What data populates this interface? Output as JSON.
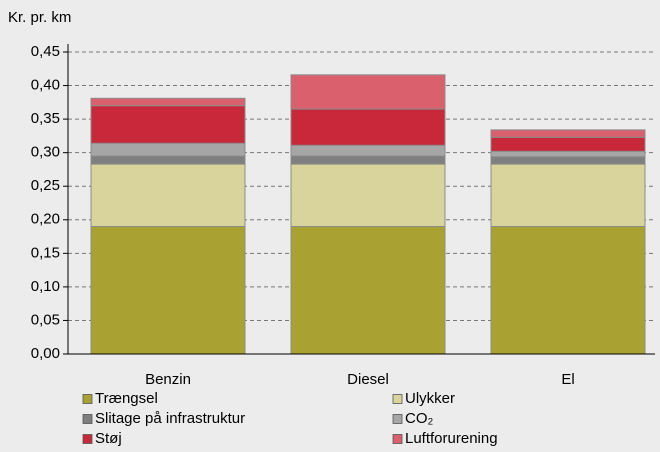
{
  "chart_data": {
    "type": "stacked_bar",
    "y_label": "Kr. pr. km",
    "categories": [
      "Benzin",
      "Diesel",
      "El"
    ],
    "series": [
      {
        "name": "Trængsel",
        "color": "#a9a233",
        "values": [
          0.19,
          0.19,
          0.19
        ]
      },
      {
        "name": "Ulykker",
        "color": "#d8d49b",
        "values": [
          0.093,
          0.093,
          0.093
        ]
      },
      {
        "name": "Slitage på infrastruktur",
        "color": "#7f7f7f",
        "values": [
          0.012,
          0.012,
          0.011
        ]
      },
      {
        "name": "CO₂",
        "color": "#a6a6a6",
        "values": [
          0.019,
          0.016,
          0.008
        ]
      },
      {
        "name": "Støj",
        "color": "#c8283a",
        "values": [
          0.056,
          0.054,
          0.021
        ]
      },
      {
        "name": "Luftforurening",
        "color": "#d9606c",
        "values": [
          0.011,
          0.051,
          0.011
        ]
      }
    ],
    "ylim": [
      0,
      0.45
    ],
    "yticks": [
      {
        "value": 0,
        "label": "0,00"
      },
      {
        "value": 0.05,
        "label": "0,05"
      },
      {
        "value": 0.1,
        "label": "0,10"
      },
      {
        "value": 0.15,
        "label": "0,15"
      },
      {
        "value": 0.2,
        "label": "0,20"
      },
      {
        "value": 0.25,
        "label": "0,25"
      },
      {
        "value": 0.3,
        "label": "0,30"
      },
      {
        "value": 0.35,
        "label": "0,35"
      },
      {
        "value": 0.4,
        "label": "0,40"
      },
      {
        "value": 0.45,
        "label": "0,45"
      }
    ],
    "grid": true
  }
}
